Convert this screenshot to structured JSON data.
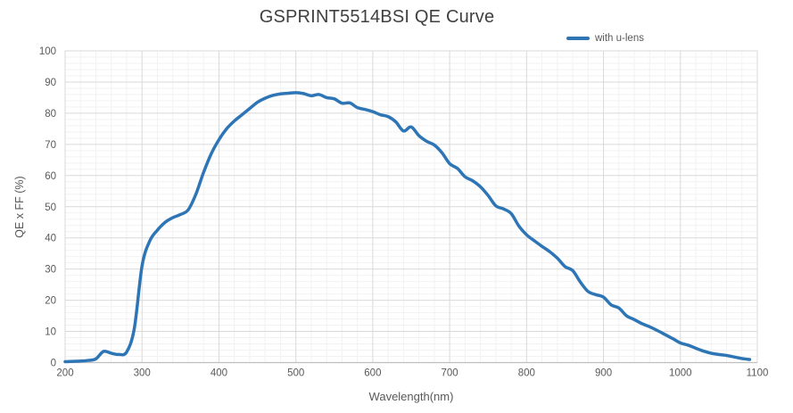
{
  "title": "GSPRINT5514BSI QE Curve",
  "legend": {
    "label": "with u-lens"
  },
  "colors": {
    "accent": "#2E75B6",
    "title_text": "#404040",
    "axis_text": "#595959",
    "grid_major": "#D9D9D9",
    "grid_minor": "#F2F2F2",
    "axis_line": "#BFBFBF",
    "background": "#FFFFFF"
  },
  "chart_data": {
    "type": "line",
    "title": "GSPRINT5514BSI QE Curve",
    "xlabel": "Wavelength(nm)",
    "ylabel": "QE x FF (%)",
    "xlim": [
      200,
      1100
    ],
    "ylim": [
      0,
      100
    ],
    "x_tick_step": 100,
    "y_tick_step": 10,
    "x_minor_step": 20,
    "y_minor_step": 2,
    "grid": "major+minor",
    "legend_position": "top-right",
    "series": [
      {
        "name": "with u-lens",
        "color": "#2E75B6",
        "x": [
          200,
          210,
          220,
          230,
          240,
          250,
          260,
          270,
          280,
          290,
          300,
          310,
          320,
          330,
          340,
          350,
          360,
          370,
          380,
          390,
          400,
          410,
          420,
          430,
          440,
          450,
          460,
          470,
          480,
          490,
          500,
          510,
          520,
          530,
          540,
          550,
          560,
          570,
          580,
          590,
          600,
          610,
          620,
          630,
          640,
          650,
          660,
          670,
          680,
          690,
          700,
          710,
          720,
          730,
          740,
          750,
          760,
          770,
          780,
          790,
          800,
          810,
          820,
          830,
          840,
          850,
          860,
          870,
          880,
          890,
          900,
          910,
          920,
          930,
          940,
          950,
          960,
          970,
          980,
          990,
          1000,
          1010,
          1020,
          1030,
          1040,
          1050,
          1060,
          1070,
          1080,
          1090
        ],
        "y": [
          0.3,
          0.4,
          0.5,
          0.7,
          1.2,
          3.6,
          3.0,
          2.6,
          3.4,
          11,
          31,
          39,
          42.5,
          45,
          46.5,
          47.5,
          49,
          54,
          61,
          67,
          71.5,
          75,
          77.5,
          79.5,
          81.5,
          83.5,
          84.8,
          85.7,
          86.2,
          86.4,
          86.6,
          86.3,
          85.6,
          86.0,
          85.0,
          84.6,
          83.2,
          83.3,
          81.8,
          81.2,
          80.5,
          79.5,
          78.9,
          77.2,
          74.3,
          75.6,
          72.8,
          71.0,
          69.8,
          67.3,
          63.8,
          62.3,
          59.6,
          58.3,
          56.4,
          53.6,
          50.3,
          49.3,
          47.8,
          43.8,
          41.0,
          39.1,
          37.3,
          35.6,
          33.5,
          30.8,
          29.5,
          25.8,
          22.8,
          21.8,
          21.0,
          18.5,
          17.5,
          15.0,
          13.8,
          12.5,
          11.5,
          10.3,
          9.0,
          7.7,
          6.3,
          5.6,
          4.6,
          3.7,
          3.0,
          2.6,
          2.3,
          1.8,
          1.3,
          1.0
        ]
      }
    ]
  }
}
